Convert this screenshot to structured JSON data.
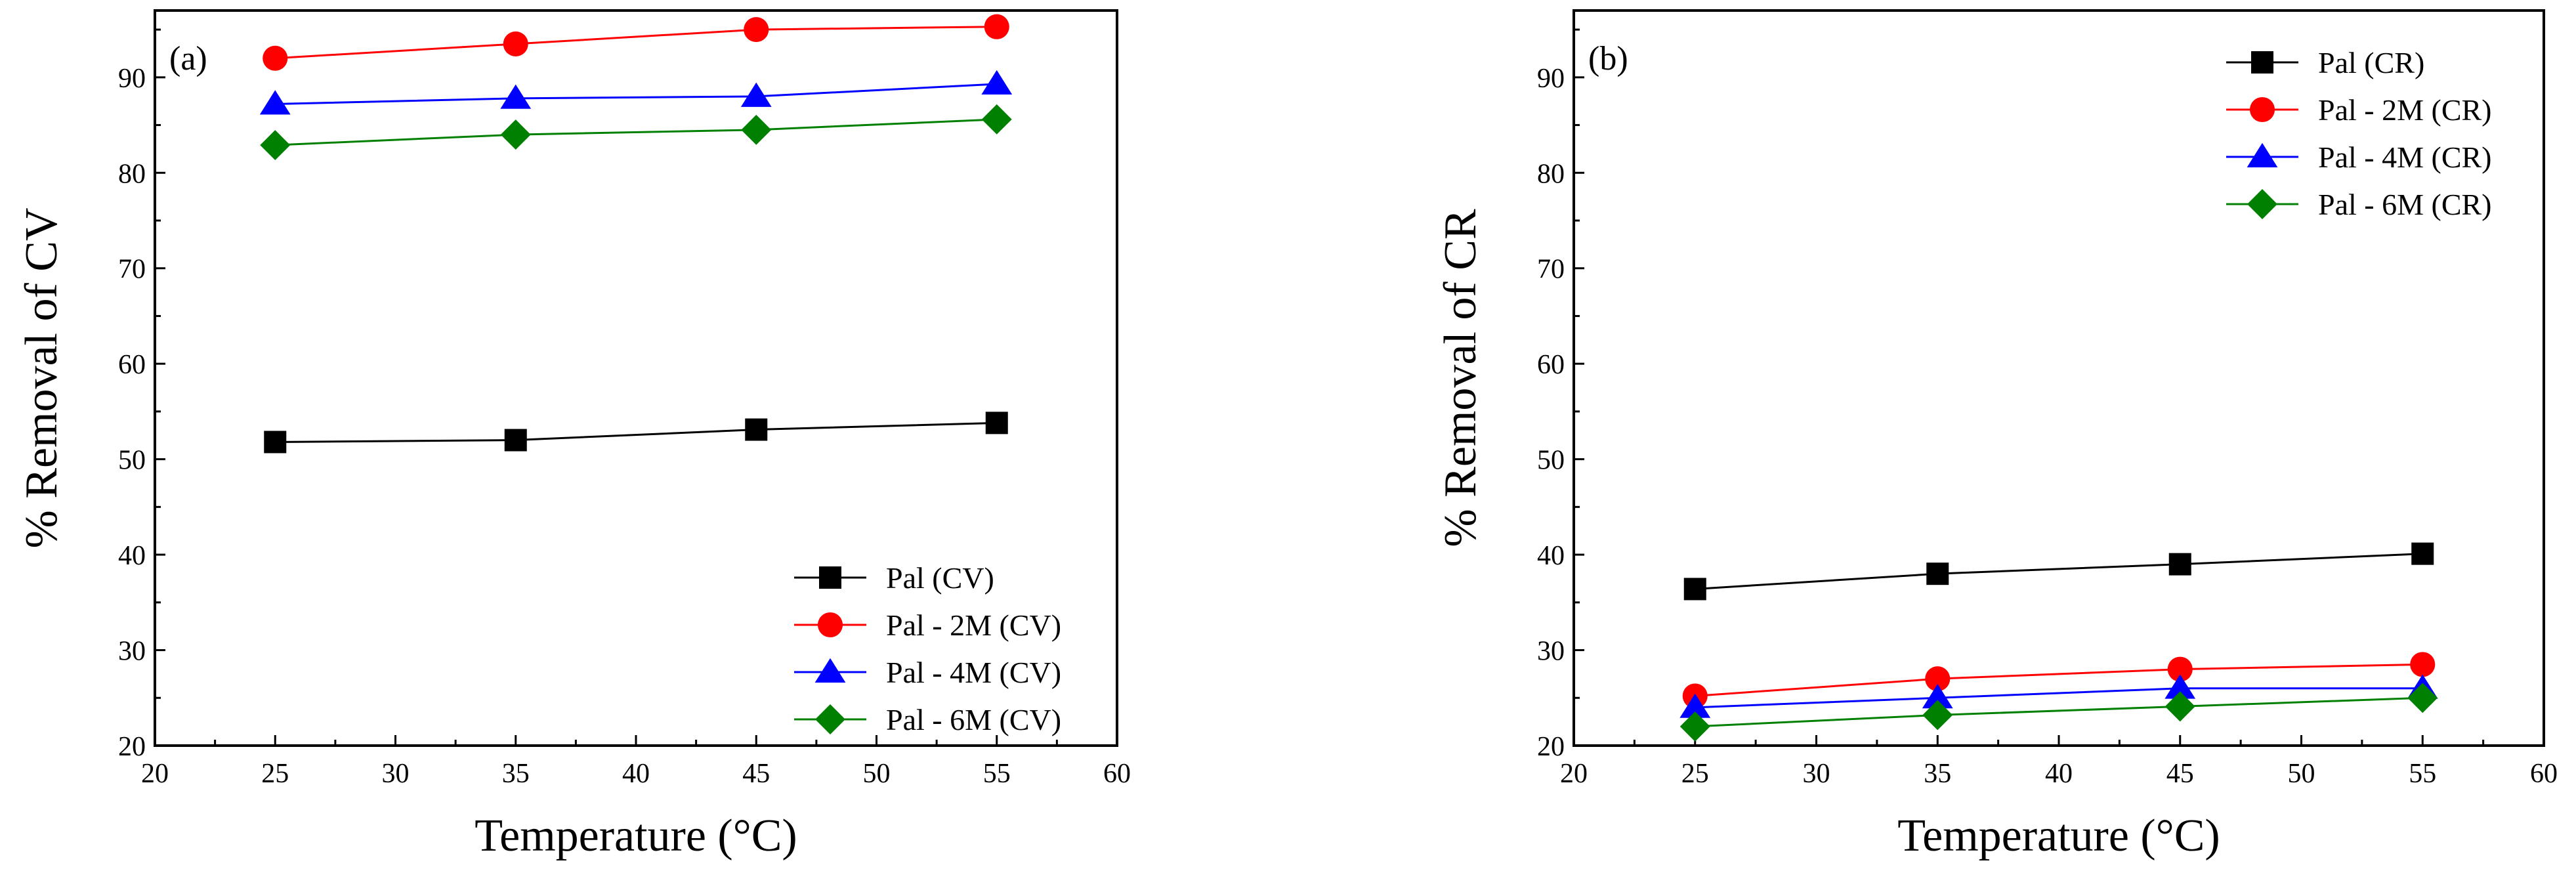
{
  "chart_data": [
    {
      "type": "line",
      "panel_label": "(a)",
      "xlabel": "Temperature (°C)",
      "ylabel": "% Removal of CV",
      "xlim": [
        20,
        60
      ],
      "ylim": [
        20,
        97
      ],
      "xticks": [
        20,
        25,
        30,
        35,
        40,
        45,
        50,
        55,
        60
      ],
      "yticks": [
        20,
        30,
        40,
        50,
        60,
        70,
        80,
        90
      ],
      "legend_position": "bottom-right",
      "x": [
        25,
        35,
        45,
        55
      ],
      "series": [
        {
          "name": "Pal (CV)",
          "values": [
            51.8,
            52.0,
            53.1,
            53.8
          ],
          "color": "#000000",
          "marker": "square"
        },
        {
          "name": "Pal - 2M (CV)",
          "values": [
            92.0,
            93.5,
            95.0,
            95.3
          ],
          "color": "#ff0000",
          "marker": "circle"
        },
        {
          "name": "Pal - 4M (CV)",
          "values": [
            87.2,
            87.8,
            88.0,
            89.3
          ],
          "color": "#0000ff",
          "marker": "triangle"
        },
        {
          "name": "Pal - 6M (CV)",
          "values": [
            82.9,
            84.0,
            84.5,
            85.6
          ],
          "color": "#008000",
          "marker": "diamond"
        }
      ]
    },
    {
      "type": "line",
      "panel_label": "(b)",
      "xlabel": "Temperature (°C)",
      "ylabel": "% Removal of CR",
      "xlim": [
        20,
        60
      ],
      "ylim": [
        20,
        97
      ],
      "xticks": [
        20,
        25,
        30,
        35,
        40,
        45,
        50,
        55,
        60
      ],
      "yticks": [
        20,
        30,
        40,
        50,
        60,
        70,
        80,
        90
      ],
      "legend_position": "top-right",
      "x": [
        25,
        35,
        45,
        55
      ],
      "series": [
        {
          "name": "Pal (CR)",
          "values": [
            36.4,
            38.0,
            39.0,
            40.1
          ],
          "color": "#000000",
          "marker": "square"
        },
        {
          "name": "Pal - 2M (CR)",
          "values": [
            25.2,
            27.0,
            28.0,
            28.5
          ],
          "color": "#ff0000",
          "marker": "circle"
        },
        {
          "name": "Pal - 4M (CR)",
          "values": [
            24.0,
            25.0,
            26.0,
            26.0
          ],
          "color": "#0000ff",
          "marker": "triangle"
        },
        {
          "name": "Pal - 6M (CR)",
          "values": [
            22.0,
            23.2,
            24.1,
            25.0
          ],
          "color": "#008000",
          "marker": "diamond"
        }
      ]
    }
  ]
}
